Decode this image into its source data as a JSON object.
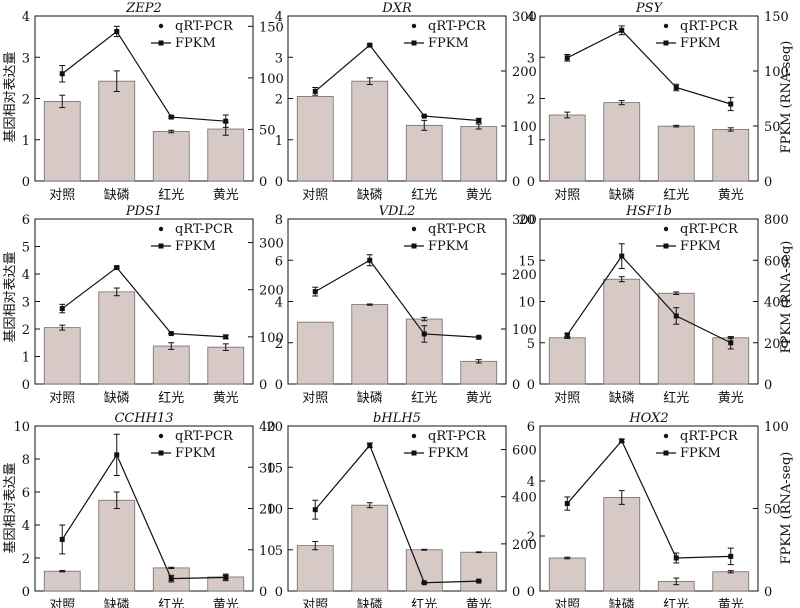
{
  "figure": {
    "left_ylabel": "基因相对表达量",
    "right_ylabel": "FPKM (RNA-seq)",
    "legend": {
      "qrt": "qRT-PCR",
      "fpkm": "FPKM"
    },
    "colors": {
      "bar": "#d7c9c6",
      "line": "#111111"
    }
  },
  "chart_data": [
    {
      "type": "bar+line",
      "title": "ZEP2",
      "categories": [
        "对照",
        "缺磷",
        "红光",
        "黄光"
      ],
      "ylim": [
        0,
        4
      ],
      "yticks": [
        0,
        1,
        2,
        3,
        4
      ],
      "y2lim": [
        0,
        160
      ],
      "y2ticks": [
        0,
        50,
        100,
        150
      ],
      "series": [
        {
          "name": "qRT-PCR",
          "values": [
            1.93,
            2.42,
            1.2,
            1.26
          ],
          "errors": [
            0.15,
            0.25,
            0.03,
            0.15
          ]
        },
        {
          "name": "FPKM",
          "axis": "right",
          "values": [
            104,
            145,
            62,
            58
          ],
          "errors": [
            8,
            5,
            1,
            6
          ]
        }
      ]
    },
    {
      "type": "bar+line",
      "title": "DXR",
      "categories": [
        "对照",
        "缺磷",
        "红光",
        "黄光"
      ],
      "ylim": [
        0,
        4
      ],
      "yticks": [
        0,
        1,
        2,
        3,
        4
      ],
      "y2lim": [
        0,
        300
      ],
      "y2ticks": [
        0,
        100,
        200,
        300
      ],
      "series": [
        {
          "name": "qRT-PCR",
          "values": [
            2.05,
            2.42,
            1.35,
            1.32
          ],
          "errors": [
            0.0,
            0.08,
            0.12,
            0.06
          ]
        },
        {
          "name": "FPKM",
          "axis": "right",
          "values": [
            163,
            247,
            118,
            110
          ],
          "errors": [
            7,
            2,
            1,
            4
          ]
        }
      ]
    },
    {
      "type": "bar+line",
      "title": "PSY",
      "categories": [
        "对照",
        "缺磷",
        "红光",
        "黄光"
      ],
      "ylim": [
        0,
        4
      ],
      "yticks": [
        0,
        1,
        2,
        3,
        4
      ],
      "y2lim": [
        0,
        150
      ],
      "y2ticks": [
        0,
        50,
        100,
        150
      ],
      "series": [
        {
          "name": "qRT-PCR",
          "values": [
            1.6,
            1.9,
            1.33,
            1.25
          ],
          "errors": [
            0.07,
            0.05,
            0.02,
            0.04
          ]
        },
        {
          "name": "FPKM",
          "axis": "right",
          "values": [
            112,
            137,
            85,
            70
          ],
          "errors": [
            3,
            4,
            3,
            6
          ]
        }
      ]
    },
    {
      "type": "bar+line",
      "title": "PDS1",
      "categories": [
        "对照",
        "缺磷",
        "红光",
        "黄光"
      ],
      "ylim": [
        0,
        6
      ],
      "yticks": [
        0,
        1,
        2,
        3,
        4,
        5,
        6
      ],
      "y2lim": [
        0,
        350
      ],
      "y2ticks": [
        0,
        100,
        200,
        300
      ],
      "series": [
        {
          "name": "qRT-PCR",
          "values": [
            2.05,
            3.35,
            1.38,
            1.34
          ],
          "errors": [
            0.09,
            0.14,
            0.12,
            0.12
          ]
        },
        {
          "name": "FPKM",
          "axis": "right",
          "values": [
            160,
            247,
            107,
            100
          ],
          "errors": [
            9,
            2,
            1,
            4
          ]
        }
      ]
    },
    {
      "type": "bar+line",
      "title": "VDL2",
      "categories": [
        "对照",
        "缺磷",
        "红光",
        "黄光"
      ],
      "ylim": [
        0,
        8
      ],
      "yticks": [
        0,
        2,
        4,
        6,
        8
      ],
      "y2lim": [
        0,
        300
      ],
      "y2ticks": [
        0,
        100,
        200,
        300
      ],
      "series": [
        {
          "name": "qRT-PCR",
          "values": [
            3.0,
            3.85,
            3.15,
            1.1
          ],
          "errors": [
            0.0,
            0.03,
            0.08,
            0.08
          ]
        },
        {
          "name": "FPKM",
          "axis": "right",
          "values": [
            168,
            225,
            91,
            85
          ],
          "errors": [
            8,
            10,
            15,
            1
          ]
        }
      ]
    },
    {
      "type": "bar+line",
      "title": "HSF1b",
      "categories": [
        "对照",
        "缺磷",
        "红光",
        "黄光"
      ],
      "ylim": [
        0,
        20
      ],
      "yticks": [
        0,
        5,
        10,
        15,
        20
      ],
      "y2lim": [
        0,
        800
      ],
      "y2ticks": [
        0,
        200,
        400,
        600,
        800
      ],
      "series": [
        {
          "name": "qRT-PCR",
          "values": [
            5.6,
            12.7,
            11.0,
            5.6
          ],
          "errors": [
            0.08,
            0.3,
            0.15,
            0.1
          ]
        },
        {
          "name": "FPKM",
          "axis": "right",
          "values": [
            238,
            620,
            330,
            200
          ],
          "errors": [
            8,
            60,
            40,
            30
          ]
        }
      ]
    },
    {
      "type": "bar+line",
      "title": "CCHH13",
      "categories": [
        "对照",
        "缺磷",
        "红光",
        "黄光"
      ],
      "ylim": [
        0,
        10
      ],
      "yticks": [
        0,
        2,
        4,
        6,
        8,
        10
      ],
      "y2lim": [
        0,
        40
      ],
      "y2ticks": [
        0,
        10,
        20,
        30,
        40
      ],
      "series": [
        {
          "name": "qRT-PCR",
          "values": [
            1.2,
            5.5,
            1.4,
            0.85
          ],
          "errors": [
            0.04,
            0.5,
            0.04,
            0.1
          ]
        },
        {
          "name": "FPKM",
          "axis": "right",
          "values": [
            12.5,
            33,
            3,
            3.3
          ],
          "errors": [
            3.5,
            5,
            0.8,
            0.8
          ]
        }
      ]
    },
    {
      "type": "bar+line",
      "title": "bHLH5",
      "categories": [
        "对照",
        "缺磷",
        "红光",
        "黄光"
      ],
      "ylim": [
        0,
        20
      ],
      "yticks": [
        0,
        5,
        10,
        15,
        20
      ],
      "y2lim": [
        0,
        700
      ],
      "y2ticks": [
        0,
        200,
        400,
        600
      ],
      "series": [
        {
          "name": "qRT-PCR",
          "values": [
            5.5,
            10.4,
            5.0,
            4.7
          ],
          "errors": [
            0.5,
            0.3,
            0.05,
            0.05
          ]
        },
        {
          "name": "FPKM",
          "axis": "right",
          "values": [
            345,
            618,
            35,
            42
          ],
          "errors": [
            40,
            10,
            2,
            2
          ]
        }
      ]
    },
    {
      "type": "bar+line",
      "title": "HOX2",
      "categories": [
        "对照",
        "缺磷",
        "红光",
        "黄光"
      ],
      "ylim": [
        0,
        6
      ],
      "yticks": [
        0,
        2,
        4,
        6
      ],
      "y2lim": [
        0,
        100
      ],
      "y2ticks": [
        0,
        50,
        100
      ],
      "series": [
        {
          "name": "qRT-PCR",
          "values": [
            1.2,
            3.4,
            0.35,
            0.7
          ],
          "errors": [
            0.03,
            0.25,
            0.12,
            0.04
          ]
        },
        {
          "name": "FPKM",
          "axis": "right",
          "values": [
            53,
            91,
            20,
            21
          ],
          "errors": [
            4,
            1,
            3,
            5
          ]
        }
      ]
    }
  ]
}
